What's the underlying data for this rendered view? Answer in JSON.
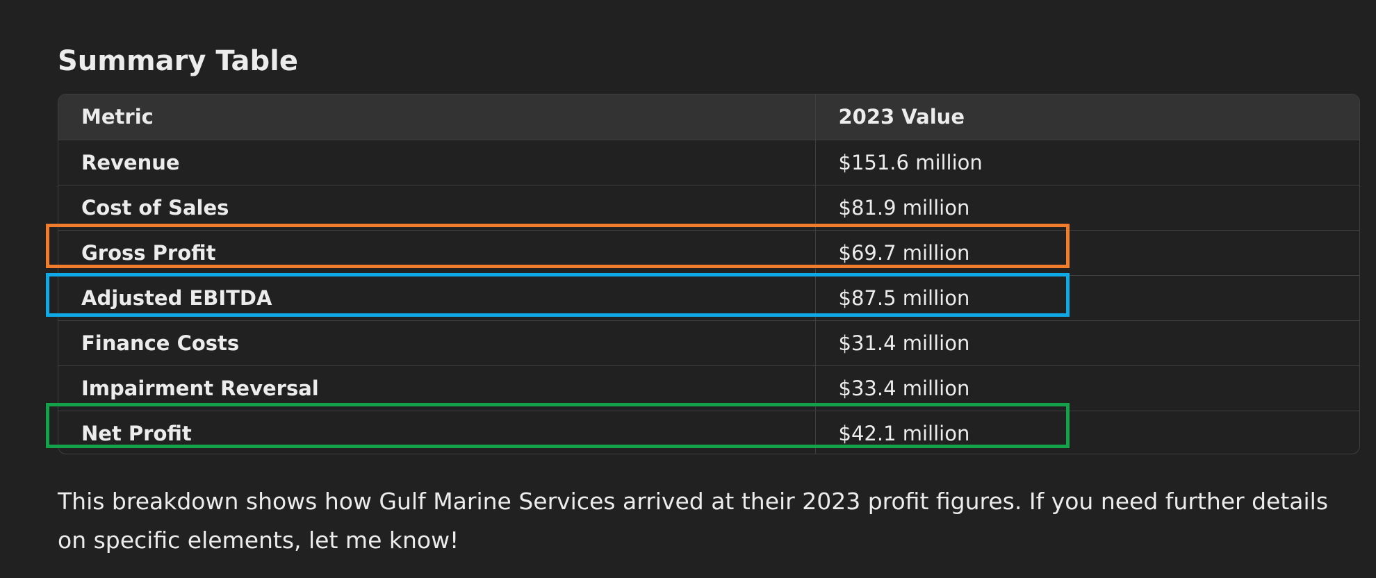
{
  "heading": "Summary Table",
  "table": {
    "columns": [
      "Metric",
      "2023 Value"
    ],
    "rows": [
      {
        "metric": "Revenue",
        "value": "$151.6 million"
      },
      {
        "metric": "Cost of Sales",
        "value": "$81.9 million"
      },
      {
        "metric": "Gross Profit",
        "value": "$69.7 million"
      },
      {
        "metric": "Adjusted EBITDA",
        "value": "$87.5 million"
      },
      {
        "metric": "Finance Costs",
        "value": "$31.4 million"
      },
      {
        "metric": "Impairment Reversal",
        "value": "$33.4 million"
      },
      {
        "metric": "Net Profit",
        "value": "$42.1 million"
      }
    ]
  },
  "highlights": {
    "gross_profit_color": "#f07c2c",
    "adjusted_ebitda_color": "#0fa9e6",
    "net_profit_color": "#13a14a"
  },
  "note": "This breakdown shows how Gulf Marine Services arrived at their 2023 profit figures. If you need further details on specific elements, let me know!"
}
